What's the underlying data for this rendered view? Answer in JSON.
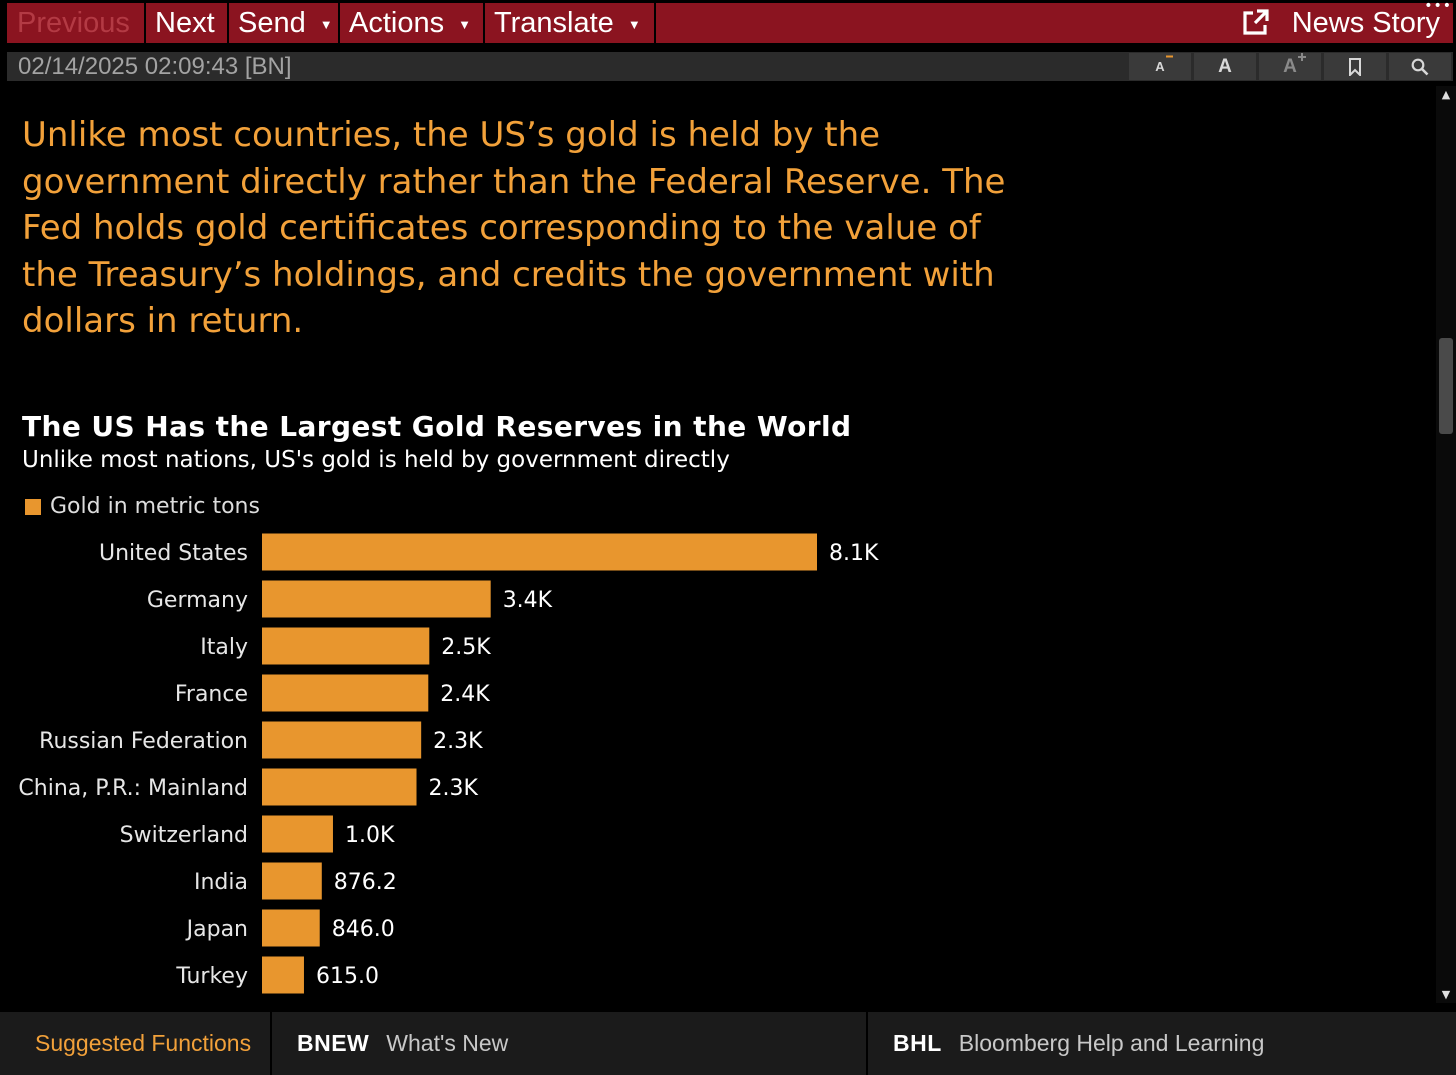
{
  "menu": {
    "previous": "Previous",
    "next": "Next",
    "send": "Send",
    "actions": "Actions",
    "translate": "Translate",
    "news_story": "News Story",
    "caret": "▼"
  },
  "toolbar": {
    "timestamp": "02/14/2025 02:09:43 [BN]",
    "font_smaller": "A",
    "font_reset": "A",
    "font_larger": "A"
  },
  "article": {
    "paragraph": "Unlike most countries, the US’s gold is held by the government directly rather than the Federal Reserve. The Fed holds gold certificates corresponding to the value of the Treasury’s holdings, and credits the government with dollars in return."
  },
  "chart_data": {
    "type": "bar",
    "orientation": "horizontal",
    "title": "The US Has the Largest Gold Reserves in the World",
    "subtitle": "Unlike most nations, US's gold is held by government directly",
    "series": [
      {
        "name": "Gold in metric tons",
        "color": "#e8962e",
        "values": [
          8133.5,
          3351.5,
          2451.8,
          2437.0,
          2332.7,
          2264.3,
          1040.0,
          876.2,
          846.0,
          615.0
        ],
        "labels": [
          "8.1K",
          "3.4K",
          "2.5K",
          "2.4K",
          "2.3K",
          "2.3K",
          "1.0K",
          "876.2",
          "846.0",
          "615.0"
        ]
      }
    ],
    "categories": [
      "United States",
      "Germany",
      "Italy",
      "France",
      "Russian Federation",
      "China, P.R.: Mainland",
      "Switzerland",
      "India",
      "Japan",
      "Turkey"
    ],
    "xlabel": "",
    "ylabel": "",
    "grid": false,
    "legend": "top-left"
  },
  "bottom": {
    "suggested": "Suggested Functions",
    "bnew_code": "BNEW",
    "bnew_label": "What's New",
    "bhl_code": "BHL",
    "bhl_label": "Bloomberg Help and Learning"
  },
  "colors": {
    "menu_bar": "#8b1420",
    "accent_orange": "#f2a13a",
    "bar_color": "#e8962e"
  }
}
